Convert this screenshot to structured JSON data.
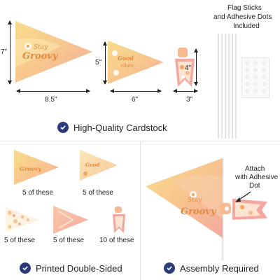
{
  "top_section": {
    "large_flag": {
      "height_label": "7\"",
      "width_label": "8.5''"
    },
    "medium_flag": {
      "height_label": "5\"",
      "width_label": "6\""
    },
    "small_flag": {
      "height_label": "4\"",
      "width_label": "3\""
    },
    "sticks_caption_line1": "Flag Sticks",
    "sticks_caption_line2": "and Adhesive Dots",
    "sticks_caption_line3": "Included",
    "feature_label": "High-Quality Cardstock"
  },
  "bottom_left": {
    "counts": [
      "5 of these",
      "5 of these",
      "5 of these",
      "5 of these",
      "10 of these"
    ],
    "feature_label": "Printed Double-Sided"
  },
  "bottom_right": {
    "attach_line1": "Attach",
    "attach_line2": "with Adhesive",
    "attach_line3": "Dot",
    "feature_label": "Assembly Required"
  },
  "colors": {
    "check_badge": "#2b3a7a",
    "flag_yellow": "#f9dc8c",
    "flag_peach": "#f7b98e",
    "flag_pink": "#f4a9a0",
    "text_orange": "#e58a3c"
  }
}
